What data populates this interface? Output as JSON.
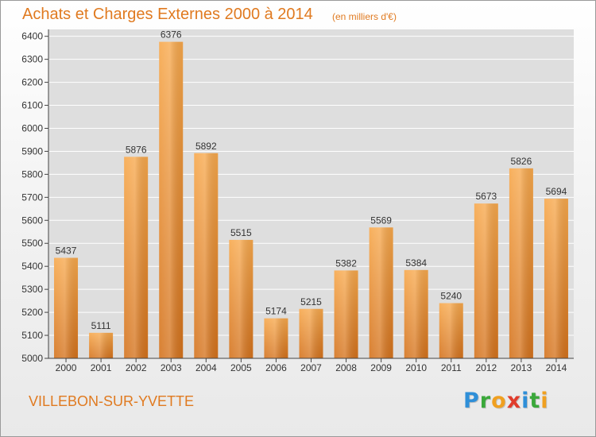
{
  "header": {
    "title": "Achats et Charges Externes 2000 à 2014",
    "subtitle": "(en milliers d'€)"
  },
  "footer": {
    "town": "VILLEBON-SUR-YVETTE",
    "logo": {
      "text": "Proxiti",
      "letters": [
        {
          "char": "P",
          "color": "#2f8fd8"
        },
        {
          "char": "r",
          "color": "#3aa83a"
        },
        {
          "char": "o",
          "color": "#f0a020"
        },
        {
          "char": "x",
          "color": "#e03c2c"
        },
        {
          "char": "i",
          "color": "#2f8fd8"
        },
        {
          "char": "t",
          "color": "#3aa83a"
        },
        {
          "char": "i",
          "color": "#f0a020"
        }
      ]
    }
  },
  "colors": {
    "accent": "#e07a20",
    "bar_light": "#f7a84c",
    "bar_dark": "#d4721c",
    "plot_bg": "#dedede",
    "grid": "#ffffff"
  },
  "chart_data": {
    "type": "bar",
    "title": "Achats et Charges Externes 2000 à 2014",
    "subtitle": "(en milliers d'€)",
    "xlabel": "",
    "ylabel": "",
    "categories": [
      "2000",
      "2001",
      "2002",
      "2003",
      "2004",
      "2005",
      "2006",
      "2007",
      "2008",
      "2009",
      "2010",
      "2011",
      "2012",
      "2013",
      "2014"
    ],
    "values": [
      5437,
      5111,
      5876,
      6376,
      5892,
      5515,
      5174,
      5215,
      5382,
      5569,
      5384,
      5240,
      5673,
      5826,
      5694
    ],
    "ylim": [
      5000,
      6400
    ],
    "yticks": [
      5000,
      5100,
      5200,
      5300,
      5400,
      5500,
      5600,
      5700,
      5800,
      5900,
      6000,
      6100,
      6200,
      6300,
      6400
    ],
    "grid": true,
    "data_labels": true
  }
}
